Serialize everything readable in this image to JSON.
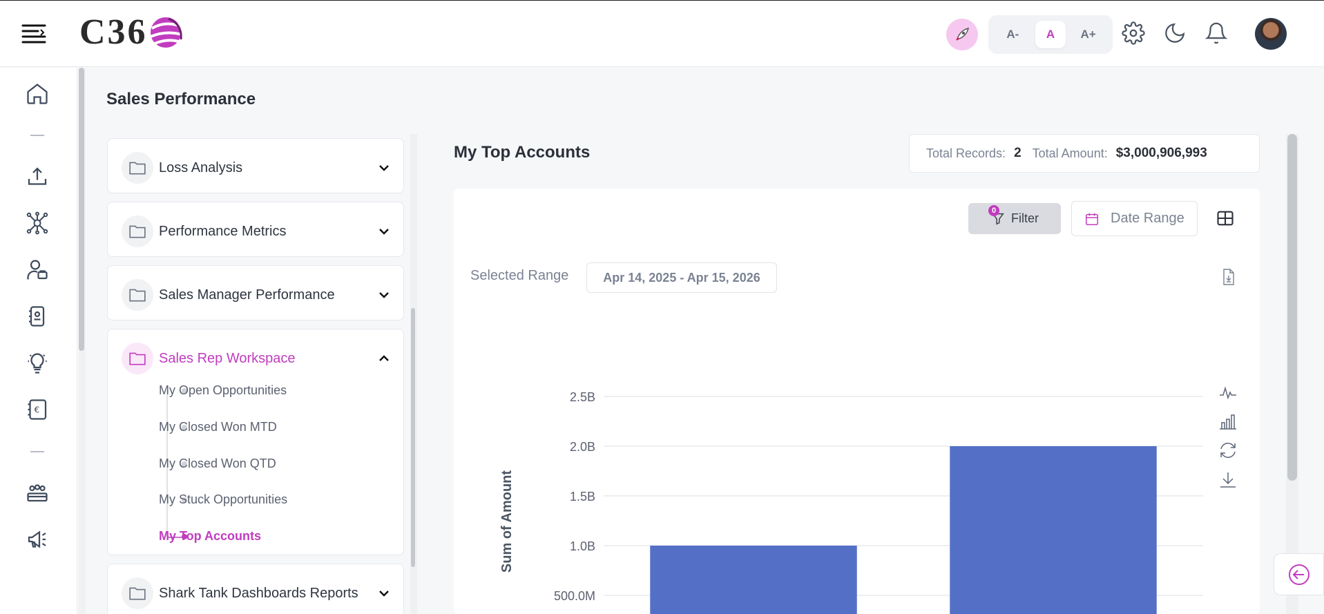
{
  "header": {
    "logo_text": "C36",
    "font_buttons": [
      "A-",
      "A",
      "A+"
    ],
    "active_font_button": "A",
    "accent_color": "#c13cbf"
  },
  "page": {
    "title": "Sales Performance"
  },
  "sidebar_cards": [
    {
      "label": "Loss Analysis",
      "expanded": false
    },
    {
      "label": "Performance Metrics",
      "expanded": false
    },
    {
      "label": "Sales Manager Performance",
      "expanded": false
    },
    {
      "label": "Sales Rep Workspace",
      "expanded": true
    },
    {
      "label": "Shark Tank Dashboards Reports",
      "expanded": false
    }
  ],
  "sales_rep_items": [
    {
      "label": "My Open Opportunities",
      "active": false
    },
    {
      "label": "My Closed Won MTD",
      "active": false
    },
    {
      "label": "My Closed Won QTD",
      "active": false
    },
    {
      "label": "My Stuck Opportunities",
      "active": false
    },
    {
      "label": "My Top Accounts",
      "active": true
    }
  ],
  "report": {
    "title": "My Top Accounts",
    "total_records_label": "Total Records:",
    "total_records": "2",
    "total_amount_label": "Total Amount:",
    "total_amount": "$3,000,906,993",
    "filter_label": "Filter",
    "filter_count": "0",
    "date_range_label": "Date Range",
    "selected_range_label": "Selected Range",
    "selected_range": "Apr 14, 2025 - Apr 15, 2026"
  },
  "chart_data": {
    "type": "bar",
    "ylabel": "Sum of Amount",
    "ytick_labels": [
      "2.5B",
      "2.0B",
      "1.5B",
      "1.0B",
      "500.0M"
    ],
    "yticks": [
      2500000000,
      2000000000,
      1500000000,
      1000000000,
      500000000
    ],
    "ylim": [
      0,
      2500000000
    ],
    "values": [
      1000000000,
      2000000000
    ],
    "bar_color": "#5470c6",
    "grid": true
  }
}
